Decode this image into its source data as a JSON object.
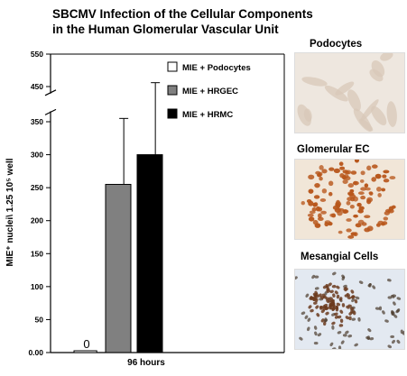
{
  "title": {
    "line1": "SBCMV Infection of the Cellular Components",
    "line2": "in the Human Glomerular Vascular Unit"
  },
  "chart_data": {
    "type": "bar",
    "categories": [
      "96 hours"
    ],
    "xlabel": "96 hours",
    "ylabel": "MIE⁺ nuclei\\ 1.25 10⁵ well",
    "ylim": [
      0,
      550
    ],
    "axis_break": [
      370,
      420
    ],
    "yticks_lower": [
      "0.00",
      "50",
      "100",
      "150",
      "200",
      "250",
      "300",
      "350"
    ],
    "yticks_upper": [
      "450",
      "550"
    ],
    "ytick_values_lower": [
      0,
      50,
      100,
      150,
      200,
      250,
      300,
      350
    ],
    "ytick_values_upper": [
      450,
      550
    ],
    "legend_position": "top-right",
    "series": [
      {
        "name": "MIE + Podocytes",
        "value": 0,
        "error": 0,
        "color": "#ffffff",
        "data_label": "0"
      },
      {
        "name": "MIE + HRGEC",
        "value": 255,
        "error": 100,
        "color": "#808080",
        "data_label": ""
      },
      {
        "name": "MIE + HRMC",
        "value": 300,
        "error": 162,
        "color": "#000000",
        "data_label": ""
      }
    ]
  },
  "panels": [
    {
      "label": "Podocytes"
    },
    {
      "label": "Glomerular EC"
    },
    {
      "label": "Mesangial Cells"
    }
  ],
  "colors": {
    "podocyte_bg": "#eee7df",
    "glomerular_bg": "#f1e6d8",
    "mesangial_bg": "#e3e9f1",
    "stain_brown": "#b8571c"
  }
}
